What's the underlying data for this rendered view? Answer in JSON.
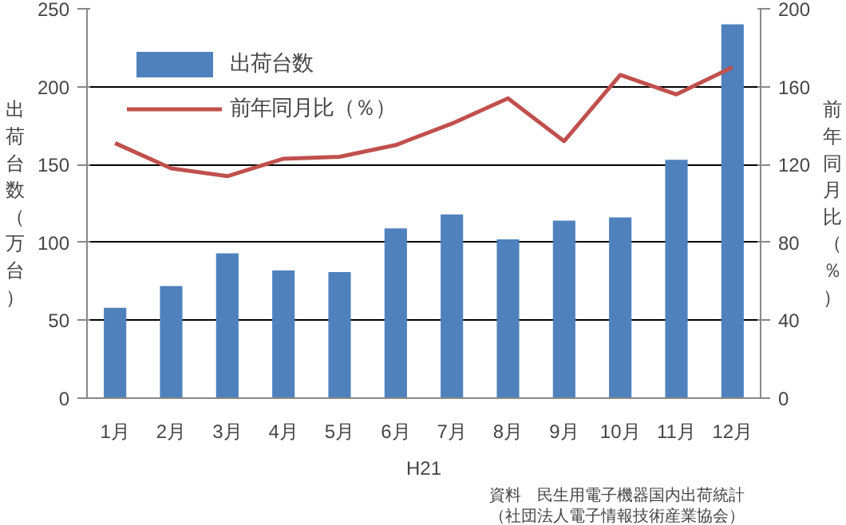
{
  "chart_data": {
    "type": "bar",
    "xlabel": "H21",
    "ylabel": "出荷台数（万台）",
    "y2label": "前年同月比（％）",
    "categories": [
      "1月",
      "2月",
      "3月",
      "4月",
      "5月",
      "6月",
      "7月",
      "8月",
      "9月",
      "10月",
      "11月",
      "12月"
    ],
    "series": [
      {
        "name": "出荷台数",
        "color": "#4f81bd",
        "values": [
          58,
          72,
          93,
          82,
          81,
          109,
          118,
          102,
          114,
          116,
          153,
          240
        ]
      },
      {
        "name": "前年同月比（％）",
        "type": "line",
        "axis": "y2",
        "color": "#c0504d",
        "values": [
          131,
          118,
          114,
          123,
          124,
          130,
          141,
          154,
          132,
          166,
          156,
          170
        ]
      }
    ],
    "ylim": [
      0,
      250
    ],
    "yticks": [
      0,
      50,
      100,
      150,
      200,
      250
    ],
    "y2lim": [
      0,
      200
    ],
    "y2ticks": [
      0,
      40,
      80,
      120,
      160,
      200
    ],
    "grid": "y",
    "legend": "top left",
    "line_style": "solid",
    "annotations": [
      "資料　民生用電子機器国内出荷統計",
      "（社団法人電子情報技術産業協会）"
    ]
  }
}
